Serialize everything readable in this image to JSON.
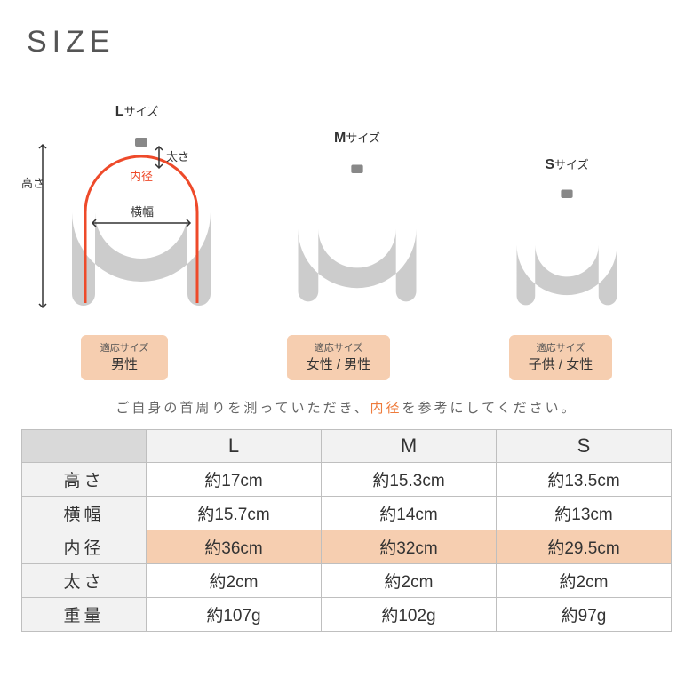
{
  "title": "SIZE",
  "sizes": {
    "L": {
      "label_bold": "L",
      "label_sub": "サイズ"
    },
    "M": {
      "label_bold": "M",
      "label_sub": "サイズ"
    },
    "S": {
      "label_bold": "S",
      "label_sub": "サイズ"
    }
  },
  "diagram_labels": {
    "height": "高さ",
    "thickness": "太さ",
    "inner": "内径",
    "width": "横幅"
  },
  "badges": {
    "header": "適応サイズ",
    "L": "男性",
    "M": "女性 / 男性",
    "S": "子供 / 女性"
  },
  "note_pre": "ご自身の首周りを測っていただき、",
  "note_accent": "内径",
  "note_post": "を参考にしてください。",
  "table": {
    "columns": [
      "L",
      "M",
      "S"
    ],
    "rows": [
      {
        "label": "高さ",
        "values": [
          "約17cm",
          "約15.3cm",
          "約13.5cm"
        ],
        "highlight": false
      },
      {
        "label": "横幅",
        "values": [
          "約15.7cm",
          "約14cm",
          "約13cm"
        ],
        "highlight": false
      },
      {
        "label": "内径",
        "values": [
          "約36cm",
          "約32cm",
          "約29.5cm"
        ],
        "highlight": true
      },
      {
        "label": "太さ",
        "values": [
          "約2cm",
          "約2cm",
          "約2cm"
        ],
        "highlight": false
      },
      {
        "label": "重量",
        "values": [
          "約107g",
          "約102g",
          "約97g"
        ],
        "highlight": false
      }
    ]
  },
  "colors": {
    "accent": "#ee7b3c",
    "badge_bg": "#f6ceb0",
    "shape_fill": "#cccccc",
    "shape_tab": "#888888",
    "grid": "#bfbfbf",
    "header_bg": "#f2f2f2",
    "corner_bg": "#d9d9d9",
    "inner_line": "#ee4a2a"
  }
}
